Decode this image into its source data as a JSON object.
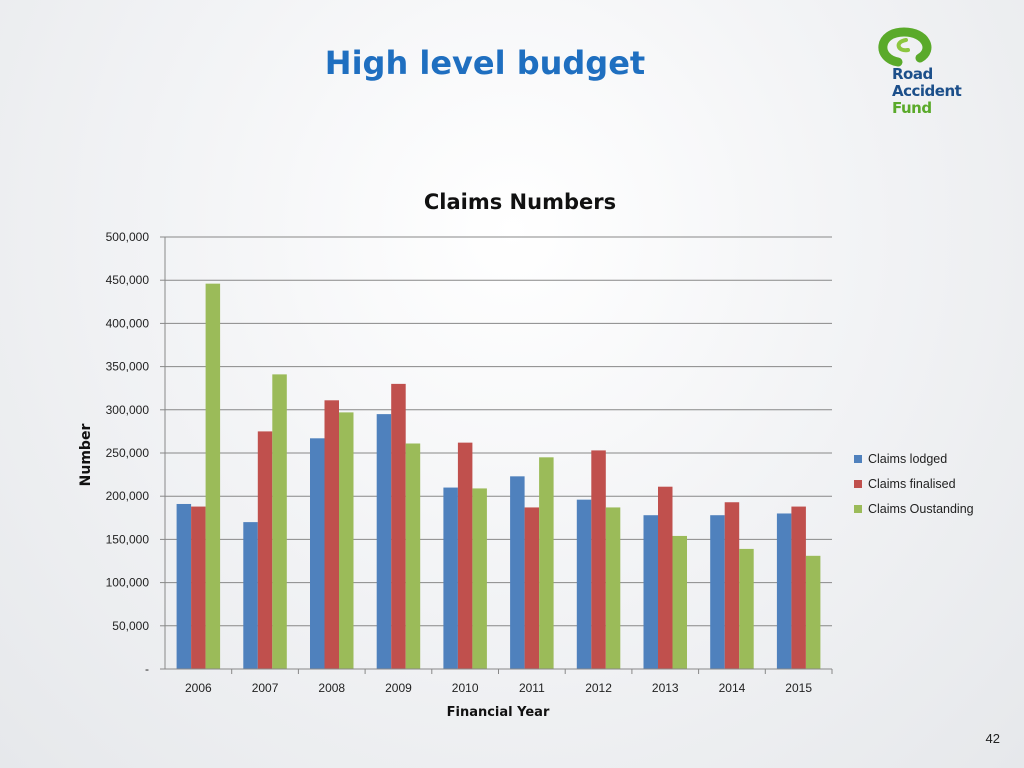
{
  "slide": {
    "title": "High level budget",
    "page_number": "42"
  },
  "logo": {
    "line1": "Road",
    "line2": "Accident",
    "line3": "Fund",
    "colors": {
      "green": "#5aaa2a",
      "blue": "#1c4f8a"
    }
  },
  "chart_data": {
    "type": "bar",
    "title": "Claims Numbers",
    "xlabel": "Financial Year",
    "ylabel": "Number",
    "categories": [
      "2006",
      "2007",
      "2008",
      "2009",
      "2010",
      "2011",
      "2012",
      "2013",
      "2014",
      "2015"
    ],
    "series": [
      {
        "name": "Claims lodged",
        "color": "#4f81bd",
        "values": [
          191000,
          170000,
          267000,
          295000,
          210000,
          223000,
          196000,
          178000,
          178000,
          180000
        ]
      },
      {
        "name": "Claims finalised",
        "color": "#c0504d",
        "values": [
          188000,
          275000,
          311000,
          330000,
          262000,
          187000,
          253000,
          211000,
          193000,
          188000
        ]
      },
      {
        "name": "Claims Oustanding",
        "color": "#9bbb59",
        "values": [
          446000,
          341000,
          297000,
          261000,
          209000,
          245000,
          187000,
          154000,
          139000,
          131000
        ]
      }
    ],
    "ylim": [
      0,
      500000
    ],
    "yticks": [
      0,
      50000,
      100000,
      150000,
      200000,
      250000,
      300000,
      350000,
      400000,
      450000,
      500000
    ],
    "ytick_labels": [
      "-",
      "50,000",
      "100,000",
      "150,000",
      "200,000",
      "250,000",
      "300,000",
      "350,000",
      "400,000",
      "450,000",
      "500,000"
    ],
    "grid": true,
    "legend_position": "right"
  }
}
